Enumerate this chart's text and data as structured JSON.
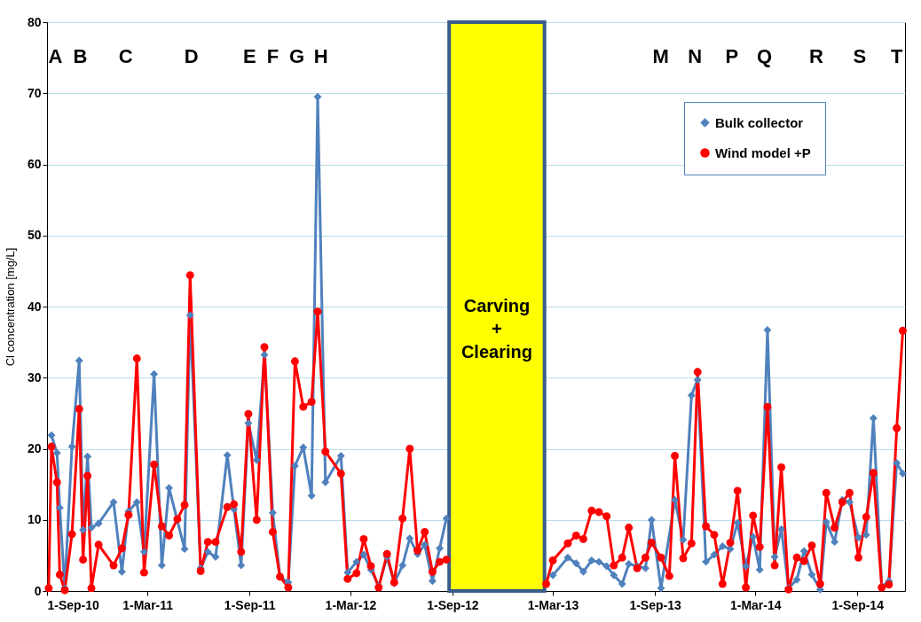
{
  "chart_data": {
    "type": "line",
    "ylabel": "Cl concentration  [mg/L]",
    "xlim": [
      "2010-09-01",
      "2014-11-26"
    ],
    "xticks": [
      {
        "value": "2010-09-01",
        "label": "1-Sep-10"
      },
      {
        "value": "2011-03-01",
        "label": "1-Mar-11"
      },
      {
        "value": "2011-09-01",
        "label": "1-Sep-11"
      },
      {
        "value": "2012-03-01",
        "label": "1-Mar-12"
      },
      {
        "value": "2012-09-01",
        "label": "1-Sep-12"
      },
      {
        "value": "2013-03-01",
        "label": "1-Mar-13"
      },
      {
        "value": "2013-09-01",
        "label": "1-Sep-13"
      },
      {
        "value": "2014-03-01",
        "label": "1-Mar-14"
      },
      {
        "value": "2014-09-01",
        "label": "1-Sep-14"
      }
    ],
    "ylim": [
      0,
      80
    ],
    "yticks": [
      0,
      10,
      20,
      30,
      40,
      50,
      60,
      70,
      80
    ],
    "grid": "y",
    "legend": "top right",
    "series": [
      {
        "name": "Bulk collector",
        "color": "#4f81bd",
        "marker": "diamond",
        "x": [
          "2010-09-09",
          "2010-09-19",
          "2010-09-24",
          "2010-10-03",
          "2010-10-16",
          "2010-10-29",
          "2010-11-05",
          "2010-11-13",
          "2010-11-20",
          "2010-12-03",
          "2010-12-30",
          "2011-01-14",
          "2011-01-26",
          "2011-02-10",
          "2011-02-23",
          "2011-03-13",
          "2011-03-27",
          "2011-04-09",
          "2011-05-07",
          "2011-05-17",
          "2011-06-05",
          "2011-06-18",
          "2011-07-02",
          "2011-07-23",
          "2011-08-04",
          "2011-08-17",
          "2011-08-30",
          "2011-09-14",
          "2011-09-28",
          "2011-10-13",
          "2011-10-26",
          "2011-11-10",
          "2011-11-22",
          "2011-12-07",
          "2011-12-22",
          "2012-01-02",
          "2012-01-16",
          "2012-02-13",
          "2012-02-25",
          "2012-03-12",
          "2012-03-25",
          "2012-04-07",
          "2012-04-21",
          "2012-05-06",
          "2012-05-19",
          "2012-06-03",
          "2012-06-16",
          "2012-06-30",
          "2012-07-13",
          "2012-07-27",
          "2012-08-09",
          "2012-08-21",
          "2012-11-01",
          "2013-03-01",
          "2013-03-28",
          "2013-04-12",
          "2013-04-25",
          "2013-05-10",
          "2013-05-23",
          "2013-06-06",
          "2013-06-19",
          "2013-07-04",
          "2013-07-16",
          "2013-07-31",
          "2013-08-15",
          "2013-08-26",
          "2013-09-12",
          "2013-10-07",
          "2013-10-22",
          "2013-11-06",
          "2013-11-17",
          "2013-12-02",
          "2013-12-17",
          "2014-01-01",
          "2014-01-15",
          "2014-01-28",
          "2014-02-12",
          "2014-02-25",
          "2014-03-09",
          "2014-03-23",
          "2014-04-05",
          "2014-04-17",
          "2014-04-30",
          "2014-05-15",
          "2014-05-28",
          "2014-06-11",
          "2014-06-26",
          "2014-07-07",
          "2014-07-22",
          "2014-08-05",
          "2014-08-18",
          "2014-09-03",
          "2014-09-17",
          "2014-09-30",
          "2014-10-15",
          "2014-10-28",
          "2014-11-11",
          "2014-11-22"
        ],
        "values": [
          21.9,
          19.4,
          11.7,
          0.4,
          20.3,
          32.4,
          8.6,
          18.9,
          8.9,
          9.5,
          12.5,
          2.7,
          11.2,
          12.5,
          5.5,
          30.5,
          3.6,
          14.5,
          5.9,
          38.8,
          3.2,
          5.5,
          4.8,
          19.1,
          11.5,
          3.6,
          23.6,
          18.4,
          33.2,
          11.0,
          2.0,
          1.2,
          17.6,
          20.2,
          13.4,
          69.5,
          15.3,
          19.0,
          2.6,
          4.1,
          5.1,
          3.0,
          0.7,
          4.8,
          1.1,
          3.6,
          7.4,
          5.2,
          6.5,
          1.4,
          6.0,
          10.2,
          null,
          2.2,
          4.7,
          3.9,
          2.7,
          4.3,
          4.1,
          3.5,
          2.2,
          1.0,
          3.8,
          3.5,
          3.2,
          10.0,
          0.4,
          12.8,
          7.2,
          27.5,
          29.7,
          4.1,
          5.1,
          6.3,
          5.9,
          9.6,
          3.5,
          7.6,
          3.0,
          36.7,
          4.8,
          8.7,
          0.4,
          1.6,
          5.6,
          2.3,
          0.2,
          9.7,
          6.9,
          12.8,
          12.5,
          7.5,
          7.9,
          24.3,
          0.6,
          1.4,
          18.0,
          16.5
        ]
      },
      {
        "name": "Wind model +P",
        "color": "#ff0000",
        "marker": "circle",
        "x": [
          "2010-09-04",
          "2010-09-09",
          "2010-09-19",
          "2010-09-24",
          "2010-10-03",
          "2010-10-16",
          "2010-10-29",
          "2010-11-05",
          "2010-11-13",
          "2010-11-20",
          "2010-12-03",
          "2010-12-30",
          "2011-01-14",
          "2011-01-26",
          "2011-02-10",
          "2011-02-23",
          "2011-03-13",
          "2011-03-27",
          "2011-04-09",
          "2011-04-24",
          "2011-05-07",
          "2011-05-17",
          "2011-06-05",
          "2011-06-18",
          "2011-07-02",
          "2011-07-23",
          "2011-08-04",
          "2011-08-17",
          "2011-08-30",
          "2011-09-14",
          "2011-09-28",
          "2011-10-13",
          "2011-10-26",
          "2011-11-10",
          "2011-11-22",
          "2011-12-07",
          "2011-12-22",
          "2012-01-02",
          "2012-01-16",
          "2012-02-13",
          "2012-02-25",
          "2012-03-12",
          "2012-03-25",
          "2012-04-07",
          "2012-04-21",
          "2012-05-06",
          "2012-05-19",
          "2012-06-03",
          "2012-06-16",
          "2012-06-30",
          "2012-07-13",
          "2012-07-27",
          "2012-08-09",
          "2012-08-21",
          "2012-11-01",
          "2013-02-17",
          "2013-03-01",
          "2013-03-28",
          "2013-04-12",
          "2013-04-25",
          "2013-05-10",
          "2013-05-23",
          "2013-06-06",
          "2013-06-19",
          "2013-07-04",
          "2013-07-16",
          "2013-07-31",
          "2013-08-15",
          "2013-08-26",
          "2013-09-12",
          "2013-09-27",
          "2013-10-07",
          "2013-10-22",
          "2013-11-06",
          "2013-11-17",
          "2013-12-02",
          "2013-12-17",
          "2014-01-01",
          "2014-01-15",
          "2014-01-28",
          "2014-02-12",
          "2014-02-25",
          "2014-03-09",
          "2014-03-23",
          "2014-04-05",
          "2014-04-17",
          "2014-04-30",
          "2014-05-15",
          "2014-05-28",
          "2014-06-11",
          "2014-06-26",
          "2014-07-07",
          "2014-07-22",
          "2014-08-05",
          "2014-08-18",
          "2014-09-03",
          "2014-09-17",
          "2014-09-30",
          "2014-10-15",
          "2014-10-28",
          "2014-11-11",
          "2014-11-22"
        ],
        "values": [
          0.4,
          20.3,
          15.3,
          2.3,
          0.1,
          8.0,
          25.6,
          4.4,
          16.2,
          0.4,
          6.5,
          3.6,
          6.0,
          10.7,
          32.7,
          2.6,
          17.8,
          9.1,
          7.8,
          10.1,
          12.1,
          44.4,
          2.8,
          6.9,
          6.9,
          11.8,
          12.2,
          5.5,
          24.9,
          10.0,
          34.3,
          8.3,
          2.0,
          0.5,
          32.3,
          25.9,
          26.6,
          39.3,
          19.6,
          16.5,
          1.7,
          2.5,
          7.3,
          3.5,
          0.5,
          5.2,
          1.2,
          10.2,
          20.0,
          5.7,
          8.3,
          2.7,
          4.1,
          4.4,
          null,
          1.0,
          4.3,
          6.7,
          7.8,
          7.3,
          11.3,
          11.1,
          10.5,
          3.6,
          4.7,
          8.9,
          3.2,
          4.7,
          6.8,
          4.7,
          2.1,
          19.0,
          4.6,
          6.7,
          30.8,
          9.1,
          7.9,
          1.0,
          6.8,
          14.1,
          0.5,
          10.6,
          6.2,
          25.9,
          3.6,
          17.4,
          0.2,
          4.7,
          4.2,
          6.4,
          1.0,
          13.8,
          8.9,
          12.5,
          13.8,
          4.7,
          10.4,
          16.6,
          0.5,
          0.9,
          22.9,
          36.6
        ]
      }
    ],
    "bands": [
      {
        "axis": "x",
        "from": "2012-08-26",
        "to": "2013-02-14",
        "label": "Carving + Clearing",
        "color": "#ffff00"
      }
    ],
    "annotations": [
      "A",
      "B",
      "C",
      "D",
      "E",
      "F",
      "G",
      "H",
      "M",
      "N",
      "P",
      "Q",
      "R",
      "S",
      "T"
    ]
  }
}
